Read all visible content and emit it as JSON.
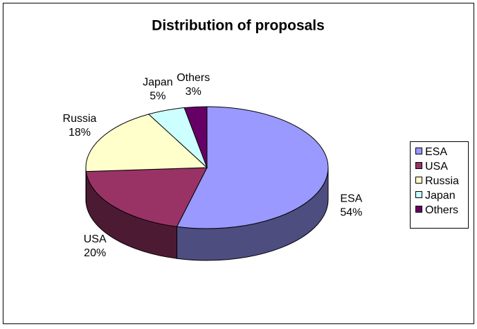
{
  "chart_data": {
    "type": "pie3d",
    "title": "Distribution of proposals",
    "categories": [
      "ESA",
      "USA",
      "Russia",
      "Japan",
      "Others"
    ],
    "values": [
      54,
      20,
      18,
      5,
      3
    ],
    "value_labels": [
      "54%",
      "20%",
      "18%",
      "5%",
      "3%"
    ],
    "colors": [
      "#9999ff",
      "#993366",
      "#ffffcc",
      "#ccffff",
      "#660066"
    ],
    "legend": "right"
  }
}
